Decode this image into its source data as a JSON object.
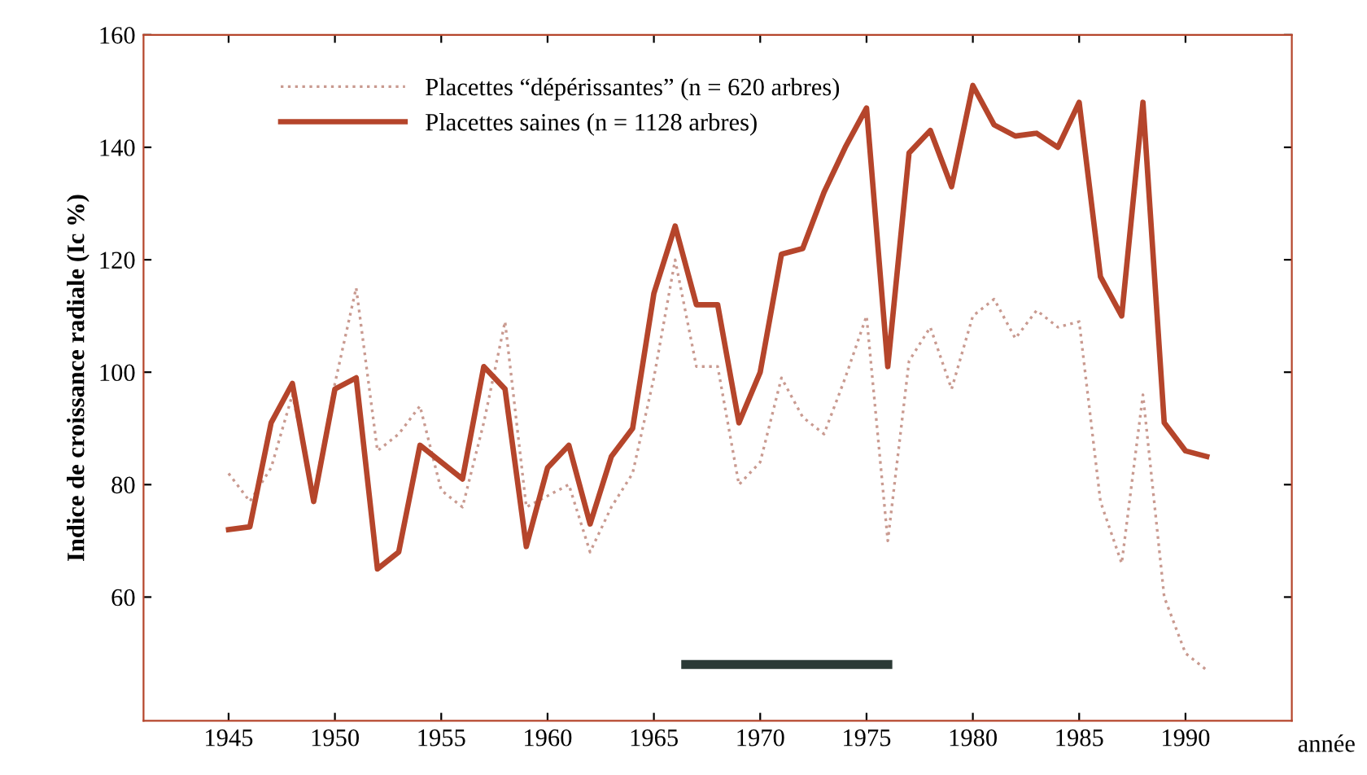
{
  "chart_data": {
    "type": "line",
    "ylabel": "Indice de croissance radiale (Ic %)",
    "xlabel": "année",
    "xlim": [
      1941,
      1995
    ],
    "ylim": [
      38,
      160
    ],
    "xticks": [
      1945,
      1950,
      1955,
      1960,
      1965,
      1970,
      1975,
      1980,
      1985,
      1990
    ],
    "yticks": [
      60,
      80,
      100,
      120,
      140,
      160
    ],
    "legend": "top left",
    "grid": false,
    "marker": "none",
    "x": [
      1945,
      1946,
      1947,
      1948,
      1949,
      1950,
      1951,
      1952,
      1953,
      1954,
      1955,
      1956,
      1957,
      1958,
      1959,
      1960,
      1961,
      1962,
      1963,
      1964,
      1965,
      1966,
      1967,
      1968,
      1969,
      1970,
      1971,
      1972,
      1973,
      1974,
      1975,
      1976,
      1977,
      1978,
      1979,
      1980,
      1981,
      1982,
      1983,
      1984,
      1985,
      1986,
      1987,
      1988,
      1989,
      1990,
      1991
    ],
    "series": [
      {
        "name": "Placettes “dépérissantes” (n = 620 arbres)",
        "color": "#c99a90",
        "line_style": "dotted",
        "values": [
          82,
          77,
          83,
          96,
          78,
          98,
          115,
          86,
          89,
          94,
          79,
          76,
          91,
          109,
          76,
          78,
          80,
          68,
          76,
          82,
          99,
          120,
          101,
          101,
          80,
          84,
          99,
          92,
          89,
          99,
          110,
          70,
          102,
          108,
          97,
          110,
          113,
          106,
          111,
          108,
          109,
          77,
          66,
          96,
          60,
          50,
          47
        ]
      },
      {
        "name": "Placettes saines (n = 1128 arbres)",
        "color": "#b5452b",
        "line_style": "solid",
        "values": [
          72,
          72.5,
          91,
          98,
          77,
          97,
          99,
          65,
          68,
          87,
          84,
          81,
          101,
          97,
          69,
          83,
          87,
          73,
          85,
          90,
          114,
          126,
          112,
          112,
          91,
          100,
          121,
          122,
          132,
          140,
          147,
          101,
          139,
          143,
          133,
          151,
          144,
          142,
          142.5,
          140,
          148,
          117,
          110,
          148,
          91,
          86,
          85
        ]
      },
      {
        "color": "#2b3a36",
        "line_style": "solid",
        "x": [
          1966.5,
          1976
        ],
        "values": [
          48,
          48
        ]
      }
    ]
  }
}
